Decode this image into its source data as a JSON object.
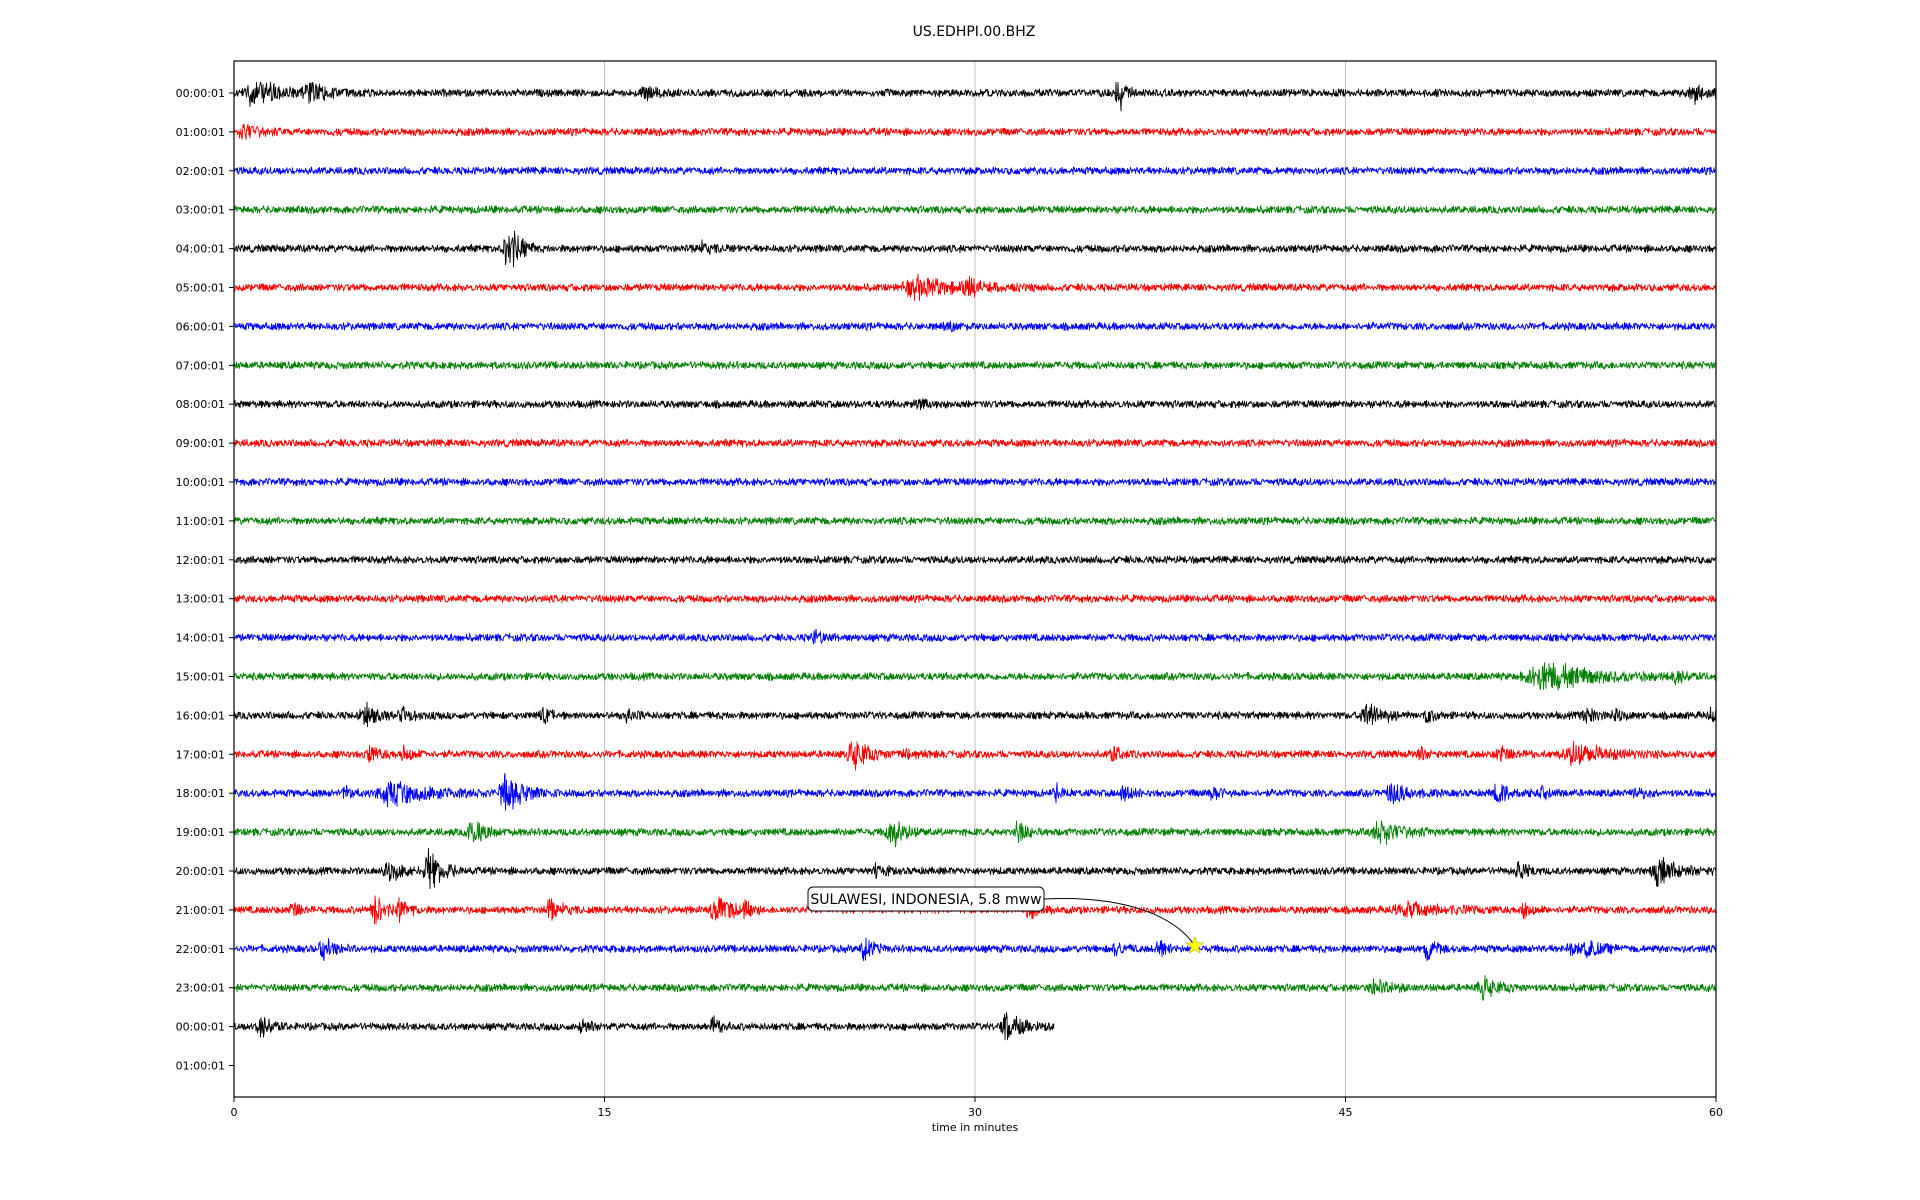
{
  "chart_data": {
    "type": "line",
    "title": "US.EDHPI.00.BHZ",
    "xlabel": "time in minutes",
    "ylabel": "",
    "xlim": [
      0,
      60
    ],
    "x_ticks": [
      "0",
      "15",
      "30",
      "45",
      "60"
    ],
    "x_tick_values": [
      0,
      15,
      30,
      45,
      60
    ],
    "grid_x": true,
    "row_labels": [
      "00:00:01",
      "01:00:01",
      "02:00:01",
      "03:00:01",
      "04:00:01",
      "05:00:01",
      "06:00:01",
      "07:00:01",
      "08:00:01",
      "09:00:01",
      "10:00:01",
      "11:00:01",
      "12:00:01",
      "13:00:01",
      "14:00:01",
      "15:00:01",
      "16:00:01",
      "17:00:01",
      "18:00:01",
      "19:00:01",
      "20:00:01",
      "21:00:01",
      "22:00:01",
      "23:00:01",
      "00:00:01",
      "01:00:01"
    ],
    "row_colors": [
      "#000000",
      "#ff0000",
      "#0000ff",
      "#008000"
    ],
    "rows": [
      {
        "end_minute": 60,
        "events": [
          [
            0.8,
            1.0,
            1.2
          ],
          [
            3.1,
            0.6,
            0.8
          ],
          [
            16.6,
            0.6,
            0.4
          ],
          [
            35.8,
            2.2,
            0.2
          ],
          [
            59.1,
            0.7,
            0.6
          ]
        ]
      },
      {
        "end_minute": 60,
        "events": [
          [
            0.4,
            0.7,
            0.5
          ]
        ]
      },
      {
        "end_minute": 60,
        "events": []
      },
      {
        "end_minute": 60,
        "events": []
      },
      {
        "end_minute": 60,
        "events": [
          [
            11.1,
            2.3,
            0.4
          ],
          [
            18.9,
            0.4,
            0.6
          ]
        ]
      },
      {
        "end_minute": 60,
        "events": [
          [
            27.7,
            0.8,
            1.6
          ],
          [
            29.8,
            0.6,
            0.6
          ]
        ]
      },
      {
        "end_minute": 60,
        "events": [
          [
            28.9,
            0.3,
            0.4
          ]
        ]
      },
      {
        "end_minute": 60,
        "events": []
      },
      {
        "end_minute": 60,
        "events": [
          [
            27.7,
            0.3,
            0.5
          ]
        ]
      },
      {
        "end_minute": 60,
        "events": []
      },
      {
        "end_minute": 60,
        "events": []
      },
      {
        "end_minute": 60,
        "events": []
      },
      {
        "end_minute": 60,
        "events": []
      },
      {
        "end_minute": 60,
        "events": []
      },
      {
        "end_minute": 60,
        "events": [
          [
            23.5,
            0.6,
            0.3
          ]
        ]
      },
      {
        "end_minute": 60,
        "events": [
          [
            53.0,
            1.2,
            1.8
          ],
          [
            58.4,
            0.5,
            0.4
          ]
        ]
      },
      {
        "end_minute": 60,
        "events": [
          [
            5.3,
            0.9,
            0.5
          ],
          [
            6.9,
            0.5,
            0.5
          ],
          [
            12.5,
            0.6,
            0.3
          ],
          [
            15.9,
            0.5,
            0.3
          ],
          [
            45.9,
            1.1,
            0.6
          ],
          [
            48.3,
            0.5,
            0.3
          ],
          [
            54.7,
            0.6,
            0.4
          ],
          [
            55.9,
            0.5,
            0.3
          ],
          [
            59.8,
            0.5,
            0.3
          ]
        ]
      },
      {
        "end_minute": 60,
        "events": [
          [
            5.5,
            0.6,
            0.5
          ],
          [
            6.9,
            0.6,
            0.3
          ],
          [
            25.1,
            1.3,
            0.6
          ],
          [
            27.2,
            0.4,
            0.5
          ],
          [
            35.6,
            0.7,
            0.3
          ],
          [
            48.0,
            0.5,
            0.3
          ],
          [
            51.3,
            0.6,
            0.5
          ],
          [
            54.3,
            0.9,
            1.2
          ]
        ]
      },
      {
        "end_minute": 60,
        "events": [
          [
            4.5,
            0.5,
            0.3
          ],
          [
            6.4,
            0.9,
            1.6
          ],
          [
            11.0,
            1.4,
            0.8
          ],
          [
            33.3,
            0.6,
            0.3
          ],
          [
            36.0,
            0.8,
            0.3
          ],
          [
            39.6,
            0.6,
            0.3
          ],
          [
            46.9,
            0.9,
            0.6
          ],
          [
            51.2,
            0.9,
            0.5
          ],
          [
            53.0,
            0.5,
            0.3
          ],
          [
            56.8,
            0.5,
            0.3
          ]
        ]
      },
      {
        "end_minute": 60,
        "events": [
          [
            9.6,
            1.1,
            0.5
          ],
          [
            26.6,
            1.2,
            0.5
          ],
          [
            31.7,
            1.0,
            0.3
          ],
          [
            46.4,
            1.0,
            0.8
          ]
        ]
      },
      {
        "end_minute": 60,
        "events": [
          [
            6.3,
            0.7,
            0.7
          ],
          [
            7.9,
            1.6,
            0.5
          ],
          [
            26.0,
            0.6,
            0.3
          ],
          [
            52.0,
            0.9,
            0.3
          ],
          [
            57.7,
            1.0,
            0.8
          ]
        ]
      },
      {
        "end_minute": 60,
        "events": [
          [
            2.4,
            0.7,
            0.3
          ],
          [
            5.7,
            1.2,
            0.4
          ],
          [
            6.7,
            0.8,
            0.3
          ],
          [
            12.8,
            0.8,
            0.5
          ],
          [
            19.5,
            1.3,
            0.6
          ],
          [
            20.7,
            0.7,
            0.3
          ],
          [
            32.2,
            0.7,
            0.3
          ],
          [
            47.5,
            0.5,
            1.5
          ],
          [
            52.2,
            0.6,
            0.3
          ]
        ]
      },
      {
        "end_minute": 60,
        "events": [
          [
            3.6,
            0.8,
            0.5
          ],
          [
            25.5,
            1.2,
            0.3
          ],
          [
            35.7,
            0.6,
            0.3
          ],
          [
            37.4,
            0.8,
            0.3
          ],
          [
            48.3,
            1.1,
            0.3
          ],
          [
            54.1,
            0.6,
            0.3
          ],
          [
            54.8,
            0.7,
            0.5
          ]
        ]
      },
      {
        "end_minute": 60,
        "events": [
          [
            46.2,
            0.7,
            0.6
          ],
          [
            50.6,
            0.8,
            0.6
          ]
        ]
      },
      {
        "end_minute": 33.2,
        "events": [
          [
            1.1,
            0.9,
            0.4
          ],
          [
            14.1,
            0.6,
            0.3
          ],
          [
            19.4,
            0.7,
            0.3
          ],
          [
            31.3,
            1.1,
            0.6
          ]
        ]
      },
      {
        "end_minute": 0,
        "events": []
      }
    ],
    "event_annotation": {
      "label": "SULAWESI, INDONESIA, 5.8 mww",
      "row_index": 22,
      "minute": 38.9,
      "marker_color": "#ffff00"
    }
  }
}
